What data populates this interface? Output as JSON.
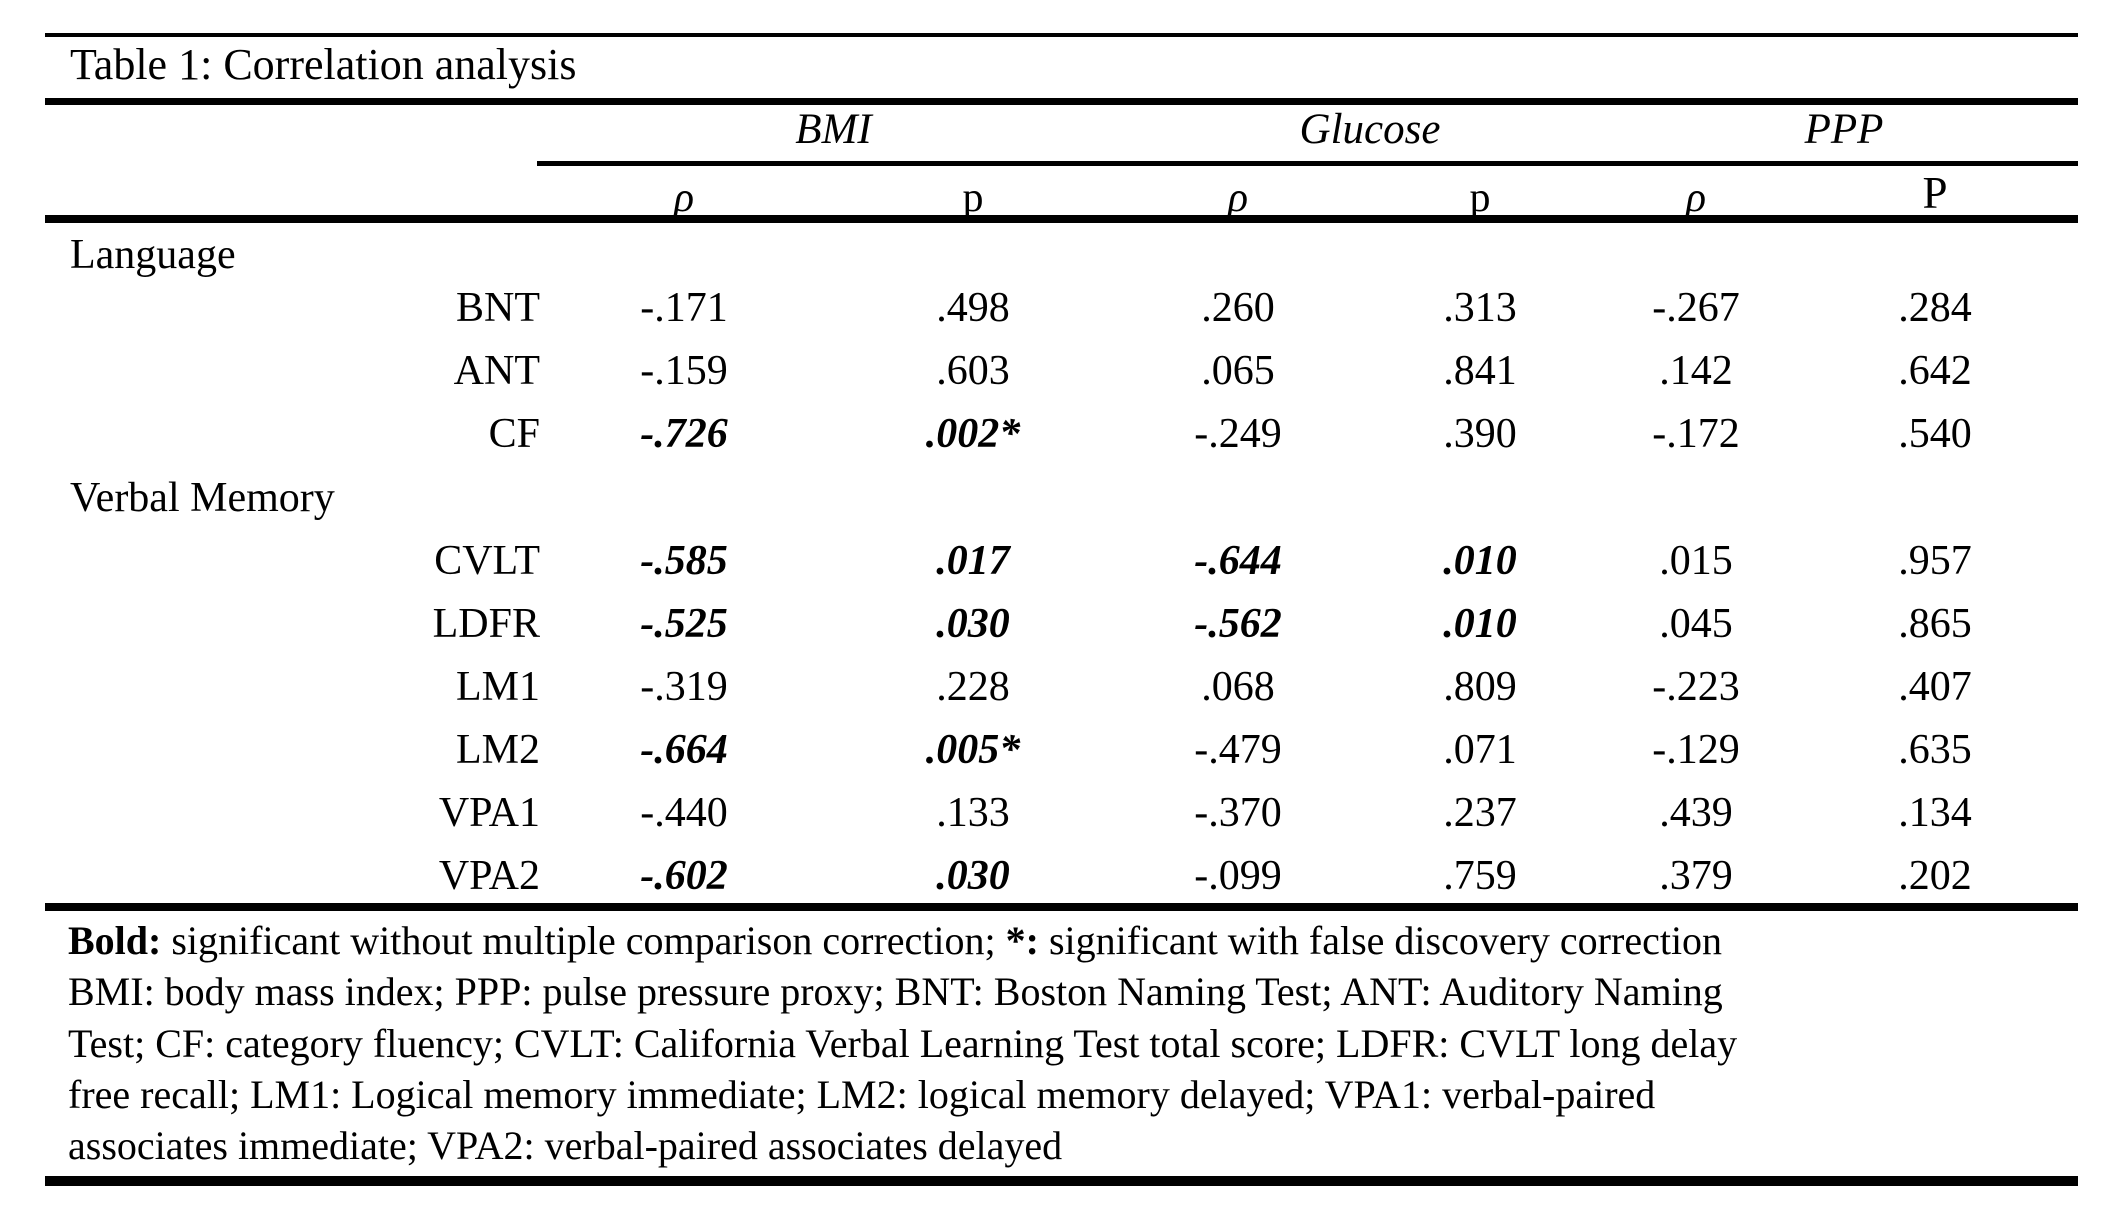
{
  "page": {
    "background": "#ffffff",
    "text_color": "#000000",
    "rule_color": "#000000"
  },
  "table": {
    "title": "Table 1: Correlation analysis",
    "groups": [
      {
        "label": "BMI"
      },
      {
        "label": "Glucose"
      },
      {
        "label": "PPP"
      }
    ],
    "sub_headers": [
      "ρ",
      "p",
      "ρ",
      "p",
      "ρ",
      "P"
    ],
    "sections": [
      {
        "label": "Language",
        "rows": [
          {
            "label": "BNT",
            "values": [
              {
                "text": "-.171",
                "bold": false
              },
              {
                "text": ".498",
                "bold": false
              },
              {
                "text": ".260",
                "bold": false
              },
              {
                "text": ".313",
                "bold": false
              },
              {
                "text": "-.267",
                "bold": false
              },
              {
                "text": ".284",
                "bold": false
              }
            ]
          },
          {
            "label": "ANT",
            "values": [
              {
                "text": "-.159",
                "bold": false
              },
              {
                "text": ".603",
                "bold": false
              },
              {
                "text": ".065",
                "bold": false
              },
              {
                "text": ".841",
                "bold": false
              },
              {
                "text": ".142",
                "bold": false
              },
              {
                "text": ".642",
                "bold": false
              }
            ]
          },
          {
            "label": "CF",
            "values": [
              {
                "text": "-.726",
                "bold": true
              },
              {
                "text": ".002*",
                "bold": true
              },
              {
                "text": "-.249",
                "bold": false
              },
              {
                "text": ".390",
                "bold": false
              },
              {
                "text": "-.172",
                "bold": false
              },
              {
                "text": ".540",
                "bold": false
              }
            ]
          }
        ]
      },
      {
        "label": "Verbal Memory",
        "rows": [
          {
            "label": "CVLT",
            "values": [
              {
                "text": "-.585",
                "bold": true
              },
              {
                "text": ".017",
                "bold": true
              },
              {
                "text": "-.644",
                "bold": true
              },
              {
                "text": ".010",
                "bold": true
              },
              {
                "text": ".015",
                "bold": false
              },
              {
                "text": ".957",
                "bold": false
              }
            ]
          },
          {
            "label": "LDFR",
            "values": [
              {
                "text": "-.525",
                "bold": true
              },
              {
                "text": ".030",
                "bold": true
              },
              {
                "text": "-.562",
                "bold": true
              },
              {
                "text": ".010",
                "bold": true
              },
              {
                "text": ".045",
                "bold": false
              },
              {
                "text": ".865",
                "bold": false
              }
            ]
          },
          {
            "label": "LM1",
            "values": [
              {
                "text": "-.319",
                "bold": false
              },
              {
                "text": ".228",
                "bold": false
              },
              {
                "text": ".068",
                "bold": false
              },
              {
                "text": ".809",
                "bold": false
              },
              {
                "text": "-.223",
                "bold": false
              },
              {
                "text": ".407",
                "bold": false
              }
            ]
          },
          {
            "label": "LM2",
            "values": [
              {
                "text": "-.664",
                "bold": true
              },
              {
                "text": ".005*",
                "bold": true
              },
              {
                "text": "-.479",
                "bold": false
              },
              {
                "text": ".071",
                "bold": false
              },
              {
                "text": "-.129",
                "bold": false
              },
              {
                "text": ".635",
                "bold": false
              }
            ]
          },
          {
            "label": "VPA1",
            "values": [
              {
                "text": "-.440",
                "bold": false
              },
              {
                "text": ".133",
                "bold": false
              },
              {
                "text": "-.370",
                "bold": false
              },
              {
                "text": ".237",
                "bold": false
              },
              {
                "text": ".439",
                "bold": false
              },
              {
                "text": ".134",
                "bold": false
              }
            ]
          },
          {
            "label": "VPA2",
            "values": [
              {
                "text": "-.602",
                "bold": true
              },
              {
                "text": ".030",
                "bold": true
              },
              {
                "text": "-.099",
                "bold": false
              },
              {
                "text": ".759",
                "bold": false
              },
              {
                "text": ".379",
                "bold": false
              },
              {
                "text": ".202",
                "bold": false
              }
            ]
          }
        ]
      }
    ],
    "notes": [
      {
        "segments": [
          {
            "text": "Bold:",
            "bold": true
          },
          {
            "text": " significant without multiple comparison correction; ",
            "bold": false
          },
          {
            "text": "*:",
            "bold": true
          },
          {
            "text": " significant with false discovery correction",
            "bold": false
          }
        ]
      },
      {
        "segments": [
          {
            "text": "BMI: body mass index; PPP: pulse pressure proxy; BNT: Boston Naming Test; ANT: Auditory Naming",
            "bold": false
          }
        ]
      },
      {
        "segments": [
          {
            "text": "Test; CF: category fluency; CVLT: California Verbal Learning Test total score; LDFR: CVLT long delay",
            "bold": false
          }
        ]
      },
      {
        "segments": [
          {
            "text": "free recall; LM1: Logical memory immediate; LM2: logical memory delayed; VPA1: verbal-paired",
            "bold": false
          }
        ]
      },
      {
        "segments": [
          {
            "text": "associates immediate; VPA2: verbal-paired associates delayed",
            "bold": false
          }
        ]
      }
    ]
  }
}
